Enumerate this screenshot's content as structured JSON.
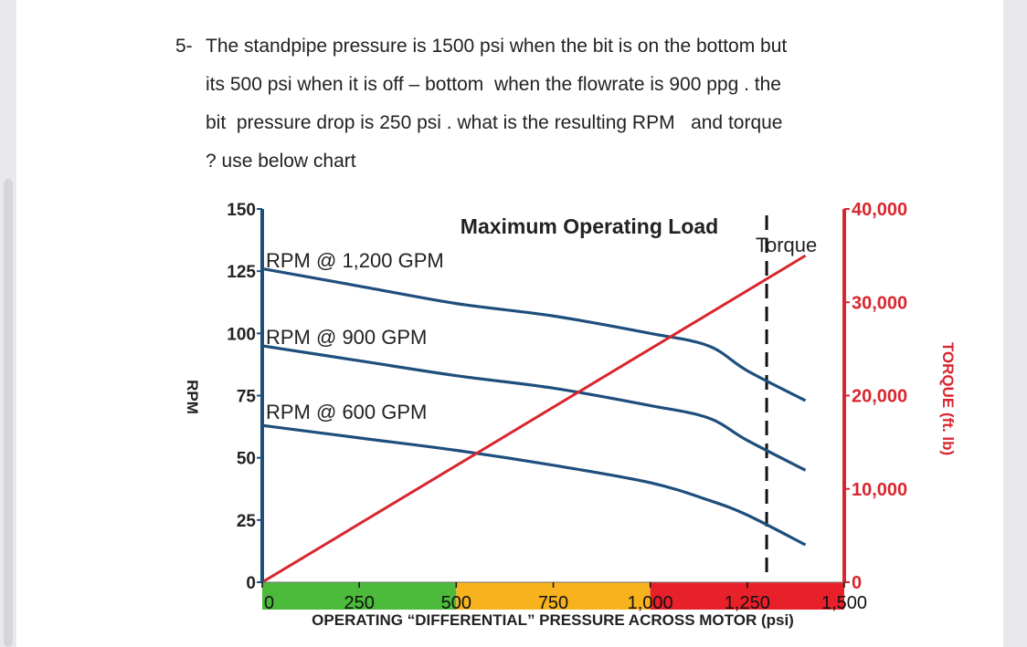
{
  "question": {
    "number": "5-",
    "lines": [
      "The standpipe pressure is 1500 psi when the bit is on the bottom but",
      "its 500 psi when it is off – bottom  when the flowrate is 900 ppg . the",
      "bit  pressure drop is 250 psi . what is the resulting RPM   and torque",
      "? use below chart"
    ]
  },
  "chart_data": {
    "type": "line",
    "title": "Maximum Operating Load",
    "xlabel": "OPERATING “DIFFERENTIAL” PRESSURE ACROSS MOTOR (psi)",
    "ylabel": "RPM",
    "y2label": "TORQUE (ft. lb)",
    "xlim": [
      0,
      1500
    ],
    "ylim": [
      0,
      150
    ],
    "y2lim": [
      0,
      40000
    ],
    "x_ticks": [
      "0",
      "250",
      "500",
      "750",
      "1,000",
      "1,250",
      "1,500"
    ],
    "y_ticks": [
      "0",
      "25",
      "50",
      "75",
      "100",
      "125",
      "150"
    ],
    "y2_ticks": [
      "0",
      "10,000",
      "20,000",
      "30,000",
      "40,000"
    ],
    "max_load_x": 1300,
    "x_bands": [
      {
        "from": 0,
        "to": 500,
        "color": "#4cba3a"
      },
      {
        "from": 500,
        "to": 1000,
        "color": "#f7b21e"
      },
      {
        "from": 1000,
        "to": 1500,
        "color": "#e8202a"
      }
    ],
    "series": [
      {
        "name": "RPM @ 1,200 GPM",
        "axis": "left",
        "color": "#1e4e7c",
        "x": [
          0,
          250,
          500,
          750,
          1000,
          1150,
          1250,
          1400
        ],
        "y": [
          126,
          119,
          112,
          107,
          100,
          95,
          85,
          73
        ]
      },
      {
        "name": "RPM @ 900 GPM",
        "axis": "left",
        "color": "#1e4e7c",
        "x": [
          0,
          250,
          500,
          750,
          1000,
          1150,
          1250,
          1400
        ],
        "y": [
          95,
          89,
          83,
          78,
          71,
          66,
          57,
          45
        ]
      },
      {
        "name": "RPM @ 600 GPM",
        "axis": "left",
        "color": "#1e4e7c",
        "x": [
          0,
          250,
          500,
          750,
          1000,
          1150,
          1250,
          1400
        ],
        "y": [
          63,
          58,
          53,
          47,
          40,
          33,
          27,
          15
        ]
      },
      {
        "name": "Torque",
        "axis": "right",
        "color": "#d9262e",
        "x": [
          0,
          1400
        ],
        "y": [
          0,
          35000
        ]
      }
    ]
  }
}
